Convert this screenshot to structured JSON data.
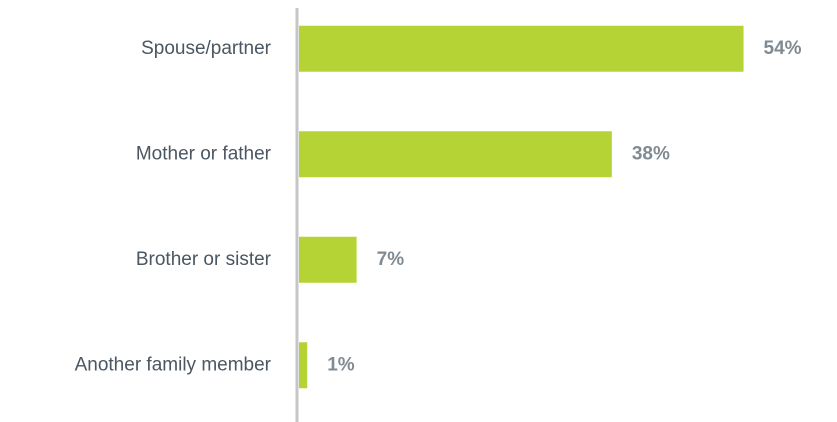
{
  "chart_data": {
    "type": "bar",
    "orientation": "horizontal",
    "categories": [
      "Spouse/partner",
      "Mother or father",
      "Brother or sister",
      "Another family member"
    ],
    "values": [
      54,
      38,
      7,
      1
    ],
    "value_labels": [
      "54%",
      "38%",
      "7%",
      "1%"
    ],
    "color": "#b5d334",
    "xlim": [
      0,
      56
    ]
  }
}
